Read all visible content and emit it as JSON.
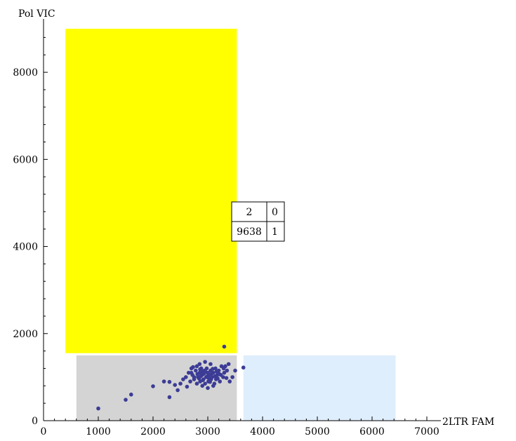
{
  "chart_data": {
    "type": "scatter",
    "title": "",
    "xlabel": "2LTR FAM",
    "ylabel": "Pol VIC",
    "xlim": [
      0,
      7000
    ],
    "ylim": [
      0,
      9000
    ],
    "x_ticks": [
      0,
      1000,
      2000,
      3000,
      4000,
      5000,
      6000,
      7000
    ],
    "y_ticks": [
      0,
      2000,
      4000,
      6000,
      8000
    ],
    "grid": false,
    "regions": [
      {
        "name": "yellow-region",
        "x": [
          400,
          3530
        ],
        "y": [
          1550,
          9000
        ],
        "color": "#ffff00"
      },
      {
        "name": "gray-region",
        "x": [
          600,
          3530
        ],
        "y": [
          0,
          1500
        ],
        "color": "#d4d4d4"
      },
      {
        "name": "blue-region",
        "x": [
          3650,
          6430
        ],
        "y": [
          0,
          1500
        ],
        "color": "#dfeefc"
      }
    ],
    "point_color": "#3c3c96",
    "count_table": {
      "rows": [
        [
          "2",
          "0"
        ],
        [
          "9638",
          "1"
        ]
      ]
    },
    "series": [
      {
        "values": [
          [
            1000,
            280
          ],
          [
            1500,
            480
          ],
          [
            1600,
            600
          ],
          [
            2000,
            790
          ],
          [
            2200,
            900
          ],
          [
            2300,
            890
          ],
          [
            2300,
            540
          ],
          [
            2400,
            820
          ],
          [
            2450,
            700
          ],
          [
            2500,
            850
          ],
          [
            2550,
            950
          ],
          [
            2600,
            1000
          ],
          [
            2620,
            780
          ],
          [
            2650,
            1100
          ],
          [
            2680,
            900
          ],
          [
            2700,
            1200
          ],
          [
            2720,
            1050
          ],
          [
            2750,
            950
          ],
          [
            2780,
            1150
          ],
          [
            2800,
            1250
          ],
          [
            2820,
            1000
          ],
          [
            2850,
            1100
          ],
          [
            2860,
            900
          ],
          [
            2880,
            1200
          ],
          [
            2900,
            1050
          ],
          [
            2920,
            950
          ],
          [
            2940,
            1150
          ],
          [
            2950,
            850
          ],
          [
            2970,
            1000
          ],
          [
            2980,
            1200
          ],
          [
            3000,
            1100
          ],
          [
            3010,
            900
          ],
          [
            3030,
            1050
          ],
          [
            3050,
            1150
          ],
          [
            3060,
            950
          ],
          [
            3080,
            1000
          ],
          [
            3100,
            1100
          ],
          [
            3120,
            850
          ],
          [
            3140,
            1200
          ],
          [
            3150,
            950
          ],
          [
            3170,
            1050
          ],
          [
            3200,
            1150
          ],
          [
            3220,
            900
          ],
          [
            3250,
            1250
          ],
          [
            3280,
            1000
          ],
          [
            3300,
            1100
          ],
          [
            3320,
            1250
          ],
          [
            3350,
            1150
          ],
          [
            3380,
            1300
          ],
          [
            3400,
            900
          ],
          [
            3450,
            1000
          ],
          [
            3500,
            1150
          ],
          [
            3650,
            1220
          ],
          [
            3300,
            1700
          ],
          [
            2850,
            1300
          ],
          [
            2950,
            1350
          ],
          [
            3050,
            1300
          ],
          [
            2900,
            800
          ],
          [
            3000,
            750
          ],
          [
            3100,
            800
          ],
          [
            2800,
            850
          ],
          [
            2750,
            1000
          ],
          [
            2870,
            1020
          ],
          [
            2930,
            1080
          ],
          [
            2990,
            1020
          ],
          [
            3020,
            970
          ],
          [
            2960,
            1120
          ],
          [
            2890,
            1130
          ],
          [
            3070,
            1080
          ],
          [
            3130,
            1020
          ],
          [
            2840,
            970
          ],
          [
            2910,
            930
          ],
          [
            3040,
            890
          ],
          [
            3180,
            970
          ],
          [
            3210,
            1070
          ],
          [
            2810,
            1070
          ],
          [
            2860,
            1180
          ],
          [
            3090,
            1190
          ],
          [
            3160,
            1130
          ],
          [
            2700,
            1100
          ],
          [
            2730,
            1230
          ],
          [
            3240,
            1050
          ],
          [
            3290,
            1200
          ],
          [
            3340,
            980
          ]
        ]
      }
    ]
  }
}
